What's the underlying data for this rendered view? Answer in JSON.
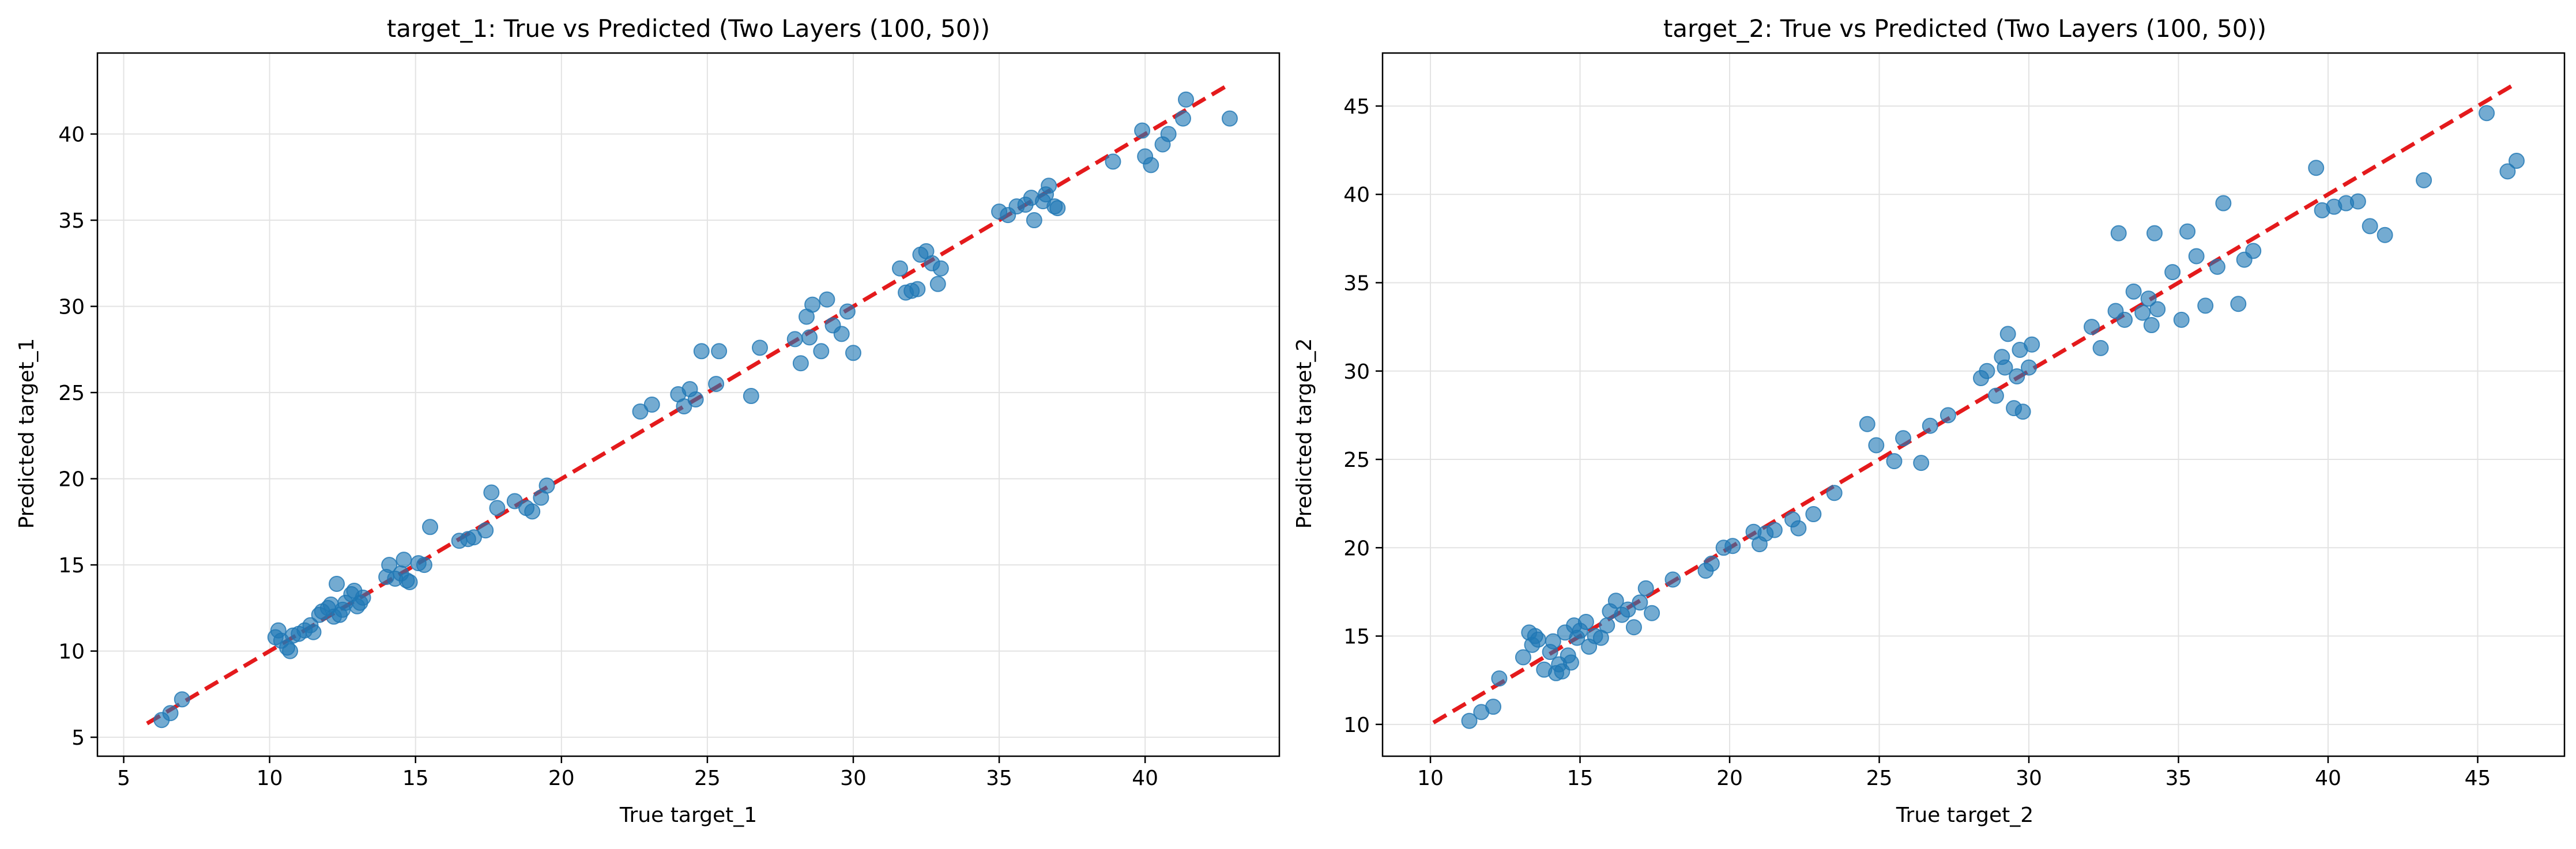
{
  "chart_data": [
    {
      "type": "scatter",
      "title": "target_1: True vs Predicted (Two Layers (100, 50))",
      "xlabel": "True target_1",
      "ylabel": "Predicted target_1",
      "xlim": [
        4.1,
        44.6
      ],
      "ylim": [
        3.9,
        44.7
      ],
      "xticks": [
        5,
        10,
        15,
        20,
        25,
        30,
        35,
        40
      ],
      "yticks": [
        5,
        10,
        15,
        20,
        25,
        30,
        35,
        40
      ],
      "grid": true,
      "point_color": "#1f77b4",
      "reference_line": {
        "from": [
          5.8,
          5.8
        ],
        "to": [
          42.9,
          42.9
        ],
        "color": "#e41a1c",
        "style": "dashed"
      },
      "x": [
        6.3,
        6.6,
        7.0,
        10.2,
        10.3,
        10.4,
        10.6,
        10.7,
        10.8,
        11.0,
        11.2,
        11.4,
        11.5,
        11.7,
        11.8,
        12.0,
        12.1,
        12.2,
        12.3,
        12.4,
        12.5,
        12.6,
        12.8,
        12.9,
        13.0,
        13.1,
        13.2,
        14.0,
        14.1,
        14.3,
        14.5,
        14.6,
        14.7,
        14.8,
        15.1,
        15.3,
        15.5,
        16.5,
        16.8,
        17.0,
        17.4,
        17.6,
        17.8,
        18.4,
        18.8,
        19.0,
        19.3,
        19.5,
        22.7,
        23.1,
        24.0,
        24.2,
        24.4,
        24.6,
        24.8,
        25.3,
        25.4,
        26.5,
        26.8,
        28.0,
        28.2,
        28.4,
        28.5,
        28.6,
        28.9,
        29.1,
        29.3,
        29.6,
        29.8,
        30.0,
        31.6,
        31.8,
        32.0,
        32.2,
        32.3,
        32.5,
        32.7,
        32.9,
        33.0,
        35.0,
        35.3,
        35.6,
        35.9,
        36.1,
        36.2,
        36.5,
        36.6,
        36.7,
        36.9,
        37.0,
        38.9,
        39.9,
        40.0,
        40.2,
        40.6,
        40.8,
        41.3,
        41.4,
        42.9
      ],
      "y": [
        6.0,
        6.4,
        7.2,
        10.8,
        11.2,
        10.6,
        10.2,
        10.0,
        10.9,
        11.0,
        11.2,
        11.5,
        11.1,
        12.1,
        12.3,
        12.5,
        12.7,
        12.0,
        13.9,
        12.1,
        12.4,
        12.8,
        13.3,
        13.5,
        12.6,
        12.8,
        13.1,
        14.3,
        15.0,
        14.2,
        14.5,
        15.3,
        14.1,
        14.0,
        15.1,
        15.0,
        17.2,
        16.4,
        16.5,
        16.6,
        17.0,
        19.2,
        18.3,
        18.7,
        18.3,
        18.1,
        18.9,
        19.6,
        23.9,
        24.3,
        24.9,
        24.2,
        25.2,
        24.6,
        27.4,
        25.5,
        27.4,
        24.8,
        27.6,
        28.1,
        26.7,
        29.4,
        28.2,
        30.1,
        27.4,
        30.4,
        28.9,
        28.4,
        29.7,
        27.3,
        32.2,
        30.8,
        30.9,
        31.0,
        33.0,
        33.2,
        32.5,
        31.3,
        32.2,
        35.5,
        35.3,
        35.8,
        35.9,
        36.3,
        35.0,
        36.1,
        36.5,
        37.0,
        35.8,
        35.7,
        38.4,
        40.2,
        38.7,
        38.2,
        39.4,
        40.0,
        40.9,
        42.0,
        40.9
      ]
    },
    {
      "type": "scatter",
      "title": "target_2: True vs Predicted (Two Layers (100, 50))",
      "xlabel": "True target_2",
      "ylabel": "Predicted target_2",
      "xlim": [
        8.4,
        47.9
      ],
      "ylim": [
        8.2,
        48.0
      ],
      "xticks": [
        10,
        15,
        20,
        25,
        30,
        35,
        40,
        45
      ],
      "yticks": [
        10,
        15,
        20,
        25,
        30,
        35,
        40,
        45
      ],
      "grid": true,
      "point_color": "#1f77b4",
      "reference_line": {
        "from": [
          10.1,
          10.1
        ],
        "to": [
          46.2,
          46.2
        ],
        "color": "#e41a1c",
        "style": "dashed"
      },
      "x": [
        11.3,
        11.7,
        12.1,
        12.3,
        13.1,
        13.3,
        13.4,
        13.5,
        13.6,
        13.8,
        14.0,
        14.1,
        14.2,
        14.3,
        14.4,
        14.5,
        14.6,
        14.7,
        14.8,
        14.9,
        15.0,
        15.2,
        15.3,
        15.5,
        15.7,
        15.9,
        16.0,
        16.2,
        16.4,
        16.6,
        16.8,
        17.0,
        17.2,
        17.4,
        18.1,
        19.2,
        19.4,
        19.8,
        20.1,
        20.8,
        21.0,
        21.2,
        21.5,
        22.1,
        22.3,
        22.8,
        23.5,
        24.6,
        24.9,
        25.5,
        25.8,
        26.4,
        26.7,
        27.3,
        28.4,
        28.6,
        28.9,
        29.1,
        29.2,
        29.3,
        29.5,
        29.6,
        29.7,
        29.8,
        30.0,
        30.1,
        32.1,
        32.4,
        32.9,
        33.0,
        33.2,
        33.5,
        33.8,
        34.0,
        34.1,
        34.2,
        34.3,
        34.8,
        35.1,
        35.3,
        35.6,
        35.9,
        36.3,
        36.5,
        37.0,
        37.2,
        37.5,
        39.6,
        39.8,
        40.2,
        40.6,
        41.0,
        41.4,
        41.9,
        43.2,
        45.3,
        46.0,
        46.3
      ],
      "y": [
        10.2,
        10.7,
        11.0,
        12.6,
        13.8,
        15.2,
        14.5,
        15.0,
        14.8,
        13.1,
        14.1,
        14.7,
        12.9,
        13.4,
        13.0,
        15.2,
        13.9,
        13.5,
        15.6,
        14.9,
        15.3,
        15.8,
        14.4,
        15.0,
        14.9,
        15.6,
        16.4,
        17.0,
        16.2,
        16.5,
        15.5,
        16.9,
        17.7,
        16.3,
        18.2,
        18.7,
        19.1,
        20.0,
        20.1,
        20.9,
        20.2,
        20.8,
        21.0,
        21.6,
        21.1,
        21.9,
        23.1,
        27.0,
        25.8,
        24.9,
        26.2,
        24.8,
        26.9,
        27.5,
        29.6,
        30.0,
        28.6,
        30.8,
        30.2,
        32.1,
        27.9,
        29.7,
        31.2,
        27.7,
        30.2,
        31.5,
        32.5,
        31.3,
        33.4,
        37.8,
        32.9,
        34.5,
        33.3,
        34.1,
        32.6,
        37.8,
        33.5,
        35.6,
        32.9,
        37.9,
        36.5,
        33.7,
        35.9,
        39.5,
        33.8,
        36.3,
        36.8,
        41.5,
        39.1,
        39.3,
        39.5,
        39.6,
        38.2,
        37.7,
        40.8,
        44.6,
        41.3,
        41.9
      ]
    }
  ]
}
